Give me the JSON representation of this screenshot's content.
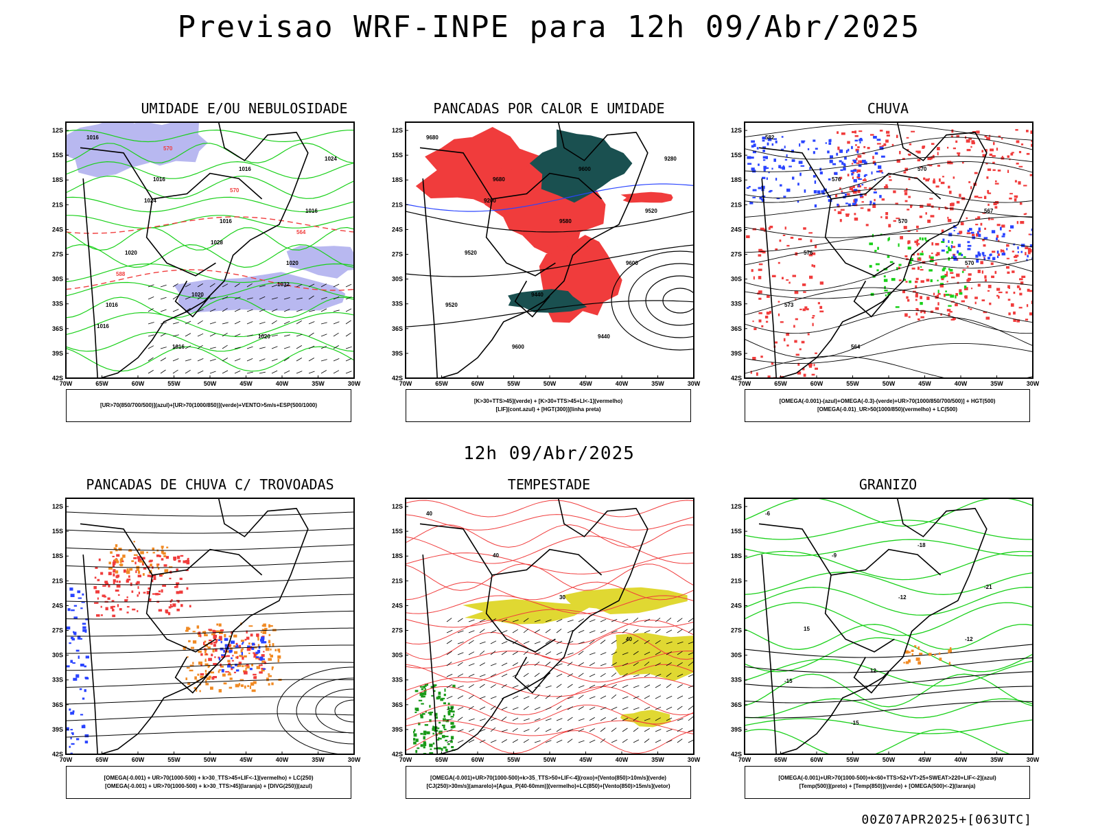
{
  "title": "Previsao WRF-INPE  para 12h 09/Abr/2025",
  "middle_title": "12h 09/Abr/2025",
  "footer": "00Z07APR2025+[063UTC]",
  "colors": {
    "blue_humidity": "#b8b8f0",
    "green_contour": "#19d019",
    "red": "#f03c3c",
    "dark_teal": "#1a5050",
    "blue": "#2a44ff",
    "orange": "#f08a24",
    "yellow": "#e0d832"
  },
  "axes": {
    "lon_ticks": [
      "70W",
      "65W",
      "60W",
      "55W",
      "50W",
      "45W",
      "40W",
      "35W",
      "30W"
    ],
    "lat_ticks": [
      "12S",
      "15S",
      "18S",
      "21S",
      "24S",
      "27S",
      "30S",
      "33S",
      "36S",
      "39S",
      "42S"
    ]
  },
  "chart_data": [
    {
      "type": "map",
      "title": "UMIDADE E/OU NEBULOSIDADE",
      "legend": [
        "[UR>70(850/700/500)](azul)+[UR>70(1000/850)](verde)+VENTO>5m/s+ESP(500/1000)"
      ],
      "contour_labels": [
        "1016",
        "1016",
        "1016",
        "1020",
        "1016",
        "1016",
        "1016",
        "1016",
        "1020",
        "1020",
        "1020",
        "1024",
        "1024",
        "1028",
        "1032",
        "1016",
        "570",
        "570",
        "564",
        "588"
      ]
    },
    {
      "type": "map",
      "title": "PANCADAS POR CALOR E UMIDADE",
      "legend": [
        "[K>30+TTS>45](verde) + [K>30+TTS>45+LI<-1](vermelho)",
        "[LIF](cont.azul) + [HGT(300)](linha preta)"
      ],
      "contour_labels": [
        "9680",
        "9680",
        "9580",
        "9600",
        "9520",
        "9600",
        "9600",
        "9520",
        "9520",
        "9440",
        "9440",
        "9280",
        "9200"
      ]
    },
    {
      "type": "map",
      "title": "CHUVA",
      "legend": [
        "[OMEGA(-0.001)-(azul)+OMEGA(-0.3)-(verde)+UR>70(1000/850/700/500)] + HGT(500)",
        "[OMEGA(-0.01)_UR>50(1000/850)(vermelho) + LC(500)"
      ],
      "contour_labels": [
        "582",
        "576",
        "570",
        "570",
        "573",
        "564",
        "570",
        "567",
        "576"
      ]
    },
    {
      "type": "map",
      "title": "PANCADAS DE CHUVA C/ TROVOADAS",
      "legend": [
        "[OMEGA(-0.001) + UR>70(1000-500) + k>30_TTS>45+LIF<-1](vermelho) + LC(250)",
        "[OMEGA(-0.001) + UR>70(1000-500) + k>30_TTS>45](laranja) + [DIVG(250)](azul)"
      ],
      "contour_labels": []
    },
    {
      "type": "map",
      "title": "TEMPESTADE",
      "legend": [
        "[OMEGA(-0.001)+UR>70(1000-500)+k>35_TTS>50+LIF<-4](roxo)+[Vento(850)>10m/s](verde)",
        "[CJ(250)>30m/s](amarelo)+[Agua_P(40-60mm)](vermelho)+LC(850)+[Vento(850)>15m/s](vetor)"
      ],
      "contour_labels": [
        "40",
        "40",
        "30",
        "40"
      ]
    },
    {
      "type": "map",
      "title": "GRANIZO",
      "legend": [
        "[OMEGA(-0.001)+UR>70(1000-500)+k<60+TTS>52+VT>25+SWEAT>220+LIF<-2](azul)",
        "[Temp(500)](preto) + [Temp(850)](verde) + [OMEGA(500)<-2](laranja)"
      ],
      "contour_labels": [
        "-6",
        "-9",
        "-12",
        "-12",
        "-15",
        "-15",
        "-18",
        "-21",
        "15",
        "12"
      ]
    }
  ]
}
